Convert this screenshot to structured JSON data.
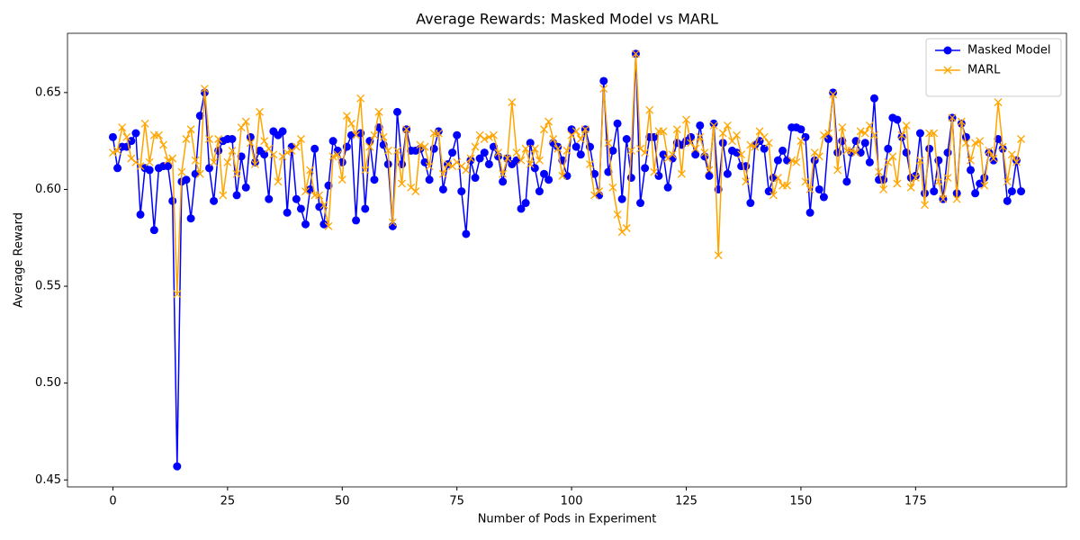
{
  "chart_data": {
    "type": "line",
    "title": "Average Rewards: Masked Model vs MARL",
    "x_label": "Number of Pods in Experiment",
    "y_label": "Average Reward",
    "legend": "upper right",
    "x": [
      0,
      1,
      2,
      3,
      4,
      5,
      6,
      7,
      8,
      9,
      10,
      11,
      12,
      13,
      14,
      15,
      16,
      17,
      18,
      19,
      20,
      21,
      22,
      23,
      24,
      25,
      26,
      27,
      28,
      29,
      30,
      31,
      32,
      33,
      34,
      35,
      36,
      37,
      38,
      39,
      40,
      41,
      42,
      43,
      44,
      45,
      46,
      47,
      48,
      49,
      50,
      51,
      52,
      53,
      54,
      55,
      56,
      57,
      58,
      59,
      60,
      61,
      62,
      63,
      64,
      65,
      66,
      67,
      68,
      69,
      70,
      71,
      72,
      73,
      74,
      75,
      76,
      77,
      78,
      79,
      80,
      81,
      82,
      83,
      84,
      85,
      86,
      87,
      88,
      89,
      90,
      91,
      92,
      93,
      94,
      95,
      96,
      97,
      98,
      99,
      100,
      101,
      102,
      103,
      104,
      105,
      106,
      107,
      108,
      109,
      110,
      111,
      112,
      113,
      114,
      115,
      116,
      117,
      118,
      119,
      120,
      121,
      122,
      123,
      124,
      125,
      126,
      127,
      128,
      129,
      130,
      131,
      132,
      133,
      134,
      135,
      136,
      137,
      138,
      139,
      140,
      141,
      142,
      143,
      144,
      145,
      146,
      147,
      148,
      149,
      150,
      151,
      152,
      153,
      154,
      155,
      156,
      157,
      158,
      159,
      160,
      161,
      162,
      163,
      164,
      165,
      166,
      167,
      168,
      169,
      170,
      171,
      172,
      173,
      174,
      175,
      176,
      177,
      178,
      179,
      180,
      181,
      182,
      183,
      184,
      185,
      186,
      187,
      188,
      189,
      190,
      191,
      192,
      193,
      194,
      195,
      196,
      197,
      198
    ],
    "series": [
      {
        "name": "Masked Model",
        "color": "#0000ff",
        "marker": "o",
        "values": [
          0.627,
          0.611,
          0.622,
          0.622,
          0.625,
          0.629,
          0.587,
          0.611,
          0.61,
          0.579,
          0.611,
          0.612,
          0.612,
          0.594,
          0.457,
          0.604,
          0.605,
          0.585,
          0.608,
          0.638,
          0.65,
          0.611,
          0.594,
          0.62,
          0.625,
          0.626,
          0.626,
          0.597,
          0.617,
          0.601,
          0.627,
          0.614,
          0.62,
          0.618,
          0.595,
          0.63,
          0.628,
          0.63,
          0.588,
          0.622,
          0.595,
          0.59,
          0.582,
          0.6,
          0.621,
          0.591,
          0.582,
          0.602,
          0.625,
          0.62,
          0.614,
          0.622,
          0.628,
          0.584,
          0.629,
          0.59,
          0.625,
          0.605,
          0.632,
          0.623,
          0.613,
          0.581,
          0.64,
          0.613,
          0.631,
          0.62,
          0.62,
          0.621,
          0.614,
          0.605,
          0.621,
          0.63,
          0.6,
          0.613,
          0.619,
          0.628,
          0.599,
          0.577,
          0.615,
          0.606,
          0.616,
          0.619,
          0.613,
          0.622,
          0.617,
          0.604,
          0.616,
          0.613,
          0.615,
          0.59,
          0.593,
          0.624,
          0.611,
          0.599,
          0.608,
          0.605,
          0.624,
          0.622,
          0.615,
          0.607,
          0.631,
          0.622,
          0.618,
          0.631,
          0.622,
          0.608,
          0.597,
          0.656,
          0.609,
          0.62,
          0.634,
          0.595,
          0.626,
          0.606,
          0.67,
          0.593,
          0.611,
          0.627,
          0.627,
          0.607,
          0.618,
          0.601,
          0.616,
          0.624,
          0.623,
          0.625,
          0.627,
          0.618,
          0.633,
          0.617,
          0.607,
          0.634,
          0.6,
          0.624,
          0.608,
          0.62,
          0.619,
          0.612,
          0.612,
          0.593,
          0.623,
          0.625,
          0.621,
          0.599,
          0.606,
          0.615,
          0.62,
          0.615,
          0.632,
          0.632,
          0.631,
          0.627,
          0.588,
          0.615,
          0.6,
          0.596,
          0.626,
          0.65,
          0.619,
          0.625,
          0.604,
          0.619,
          0.625,
          0.619,
          0.624,
          0.614,
          0.647,
          0.605,
          0.605,
          0.621,
          0.637,
          0.636,
          0.627,
          0.619,
          0.606,
          0.607,
          0.629,
          0.598,
          0.621,
          0.599,
          0.615,
          0.595,
          0.619,
          0.637,
          0.598,
          0.634,
          0.627,
          0.61,
          0.598,
          0.603,
          0.606,
          0.619,
          0.615,
          0.626,
          0.621,
          0.594,
          0.599,
          0.615,
          0.599
        ]
      },
      {
        "name": "MARL",
        "color": "#ffa500",
        "marker": "x",
        "values": [
          0.619,
          0.62,
          0.632,
          0.627,
          0.616,
          0.614,
          0.612,
          0.634,
          0.614,
          0.628,
          0.628,
          0.623,
          0.615,
          0.616,
          0.546,
          0.609,
          0.626,
          0.631,
          0.615,
          0.608,
          0.652,
          0.626,
          0.614,
          0.626,
          0.597,
          0.614,
          0.62,
          0.608,
          0.632,
          0.635,
          0.624,
          0.613,
          0.64,
          0.625,
          0.621,
          0.618,
          0.604,
          0.617,
          0.619,
          0.62,
          0.622,
          0.626,
          0.599,
          0.61,
          0.597,
          0.597,
          0.592,
          0.581,
          0.617,
          0.618,
          0.605,
          0.638,
          0.634,
          0.628,
          0.647,
          0.61,
          0.622,
          0.628,
          0.64,
          0.627,
          0.62,
          0.583,
          0.62,
          0.603,
          0.631,
          0.601,
          0.599,
          0.623,
          0.622,
          0.612,
          0.629,
          0.629,
          0.608,
          0.613,
          0.612,
          0.614,
          0.612,
          0.61,
          0.616,
          0.622,
          0.628,
          0.626,
          0.627,
          0.628,
          0.619,
          0.608,
          0.616,
          0.645,
          0.619,
          0.615,
          0.621,
          0.613,
          0.621,
          0.615,
          0.631,
          0.635,
          0.626,
          0.621,
          0.607,
          0.62,
          0.628,
          0.63,
          0.626,
          0.631,
          0.613,
          0.597,
          0.599,
          0.652,
          0.624,
          0.601,
          0.587,
          0.578,
          0.58,
          0.62,
          0.67,
          0.621,
          0.619,
          0.641,
          0.609,
          0.63,
          0.63,
          0.616,
          0.618,
          0.631,
          0.608,
          0.636,
          0.624,
          0.621,
          0.627,
          0.619,
          0.61,
          0.633,
          0.566,
          0.629,
          0.633,
          0.625,
          0.628,
          0.618,
          0.604,
          0.623,
          0.622,
          0.63,
          0.627,
          0.624,
          0.597,
          0.606,
          0.602,
          0.602,
          0.615,
          0.614,
          0.625,
          0.604,
          0.6,
          0.619,
          0.617,
          0.628,
          0.629,
          0.649,
          0.61,
          0.632,
          0.62,
          0.62,
          0.619,
          0.63,
          0.629,
          0.633,
          0.628,
          0.609,
          0.6,
          0.614,
          0.617,
          0.603,
          0.628,
          0.633,
          0.601,
          0.606,
          0.615,
          0.592,
          0.629,
          0.629,
          0.604,
          0.595,
          0.606,
          0.637,
          0.595,
          0.635,
          0.624,
          0.615,
          0.624,
          0.625,
          0.602,
          0.62,
          0.616,
          0.645,
          0.622,
          0.604,
          0.618,
          0.614,
          0.626
        ]
      }
    ],
    "xlim": [
      -9.9,
      207.9
    ],
    "ylim": [
      0.4464,
      0.6806
    ],
    "xticks": [
      0,
      25,
      50,
      75,
      100,
      125,
      150,
      175
    ],
    "yticks": [
      0.45,
      {
        "value": 0.5,
        "label": "0.50"
      },
      0.55,
      {
        "value": 0.6,
        "label": "0.60"
      },
      0.65
    ]
  }
}
